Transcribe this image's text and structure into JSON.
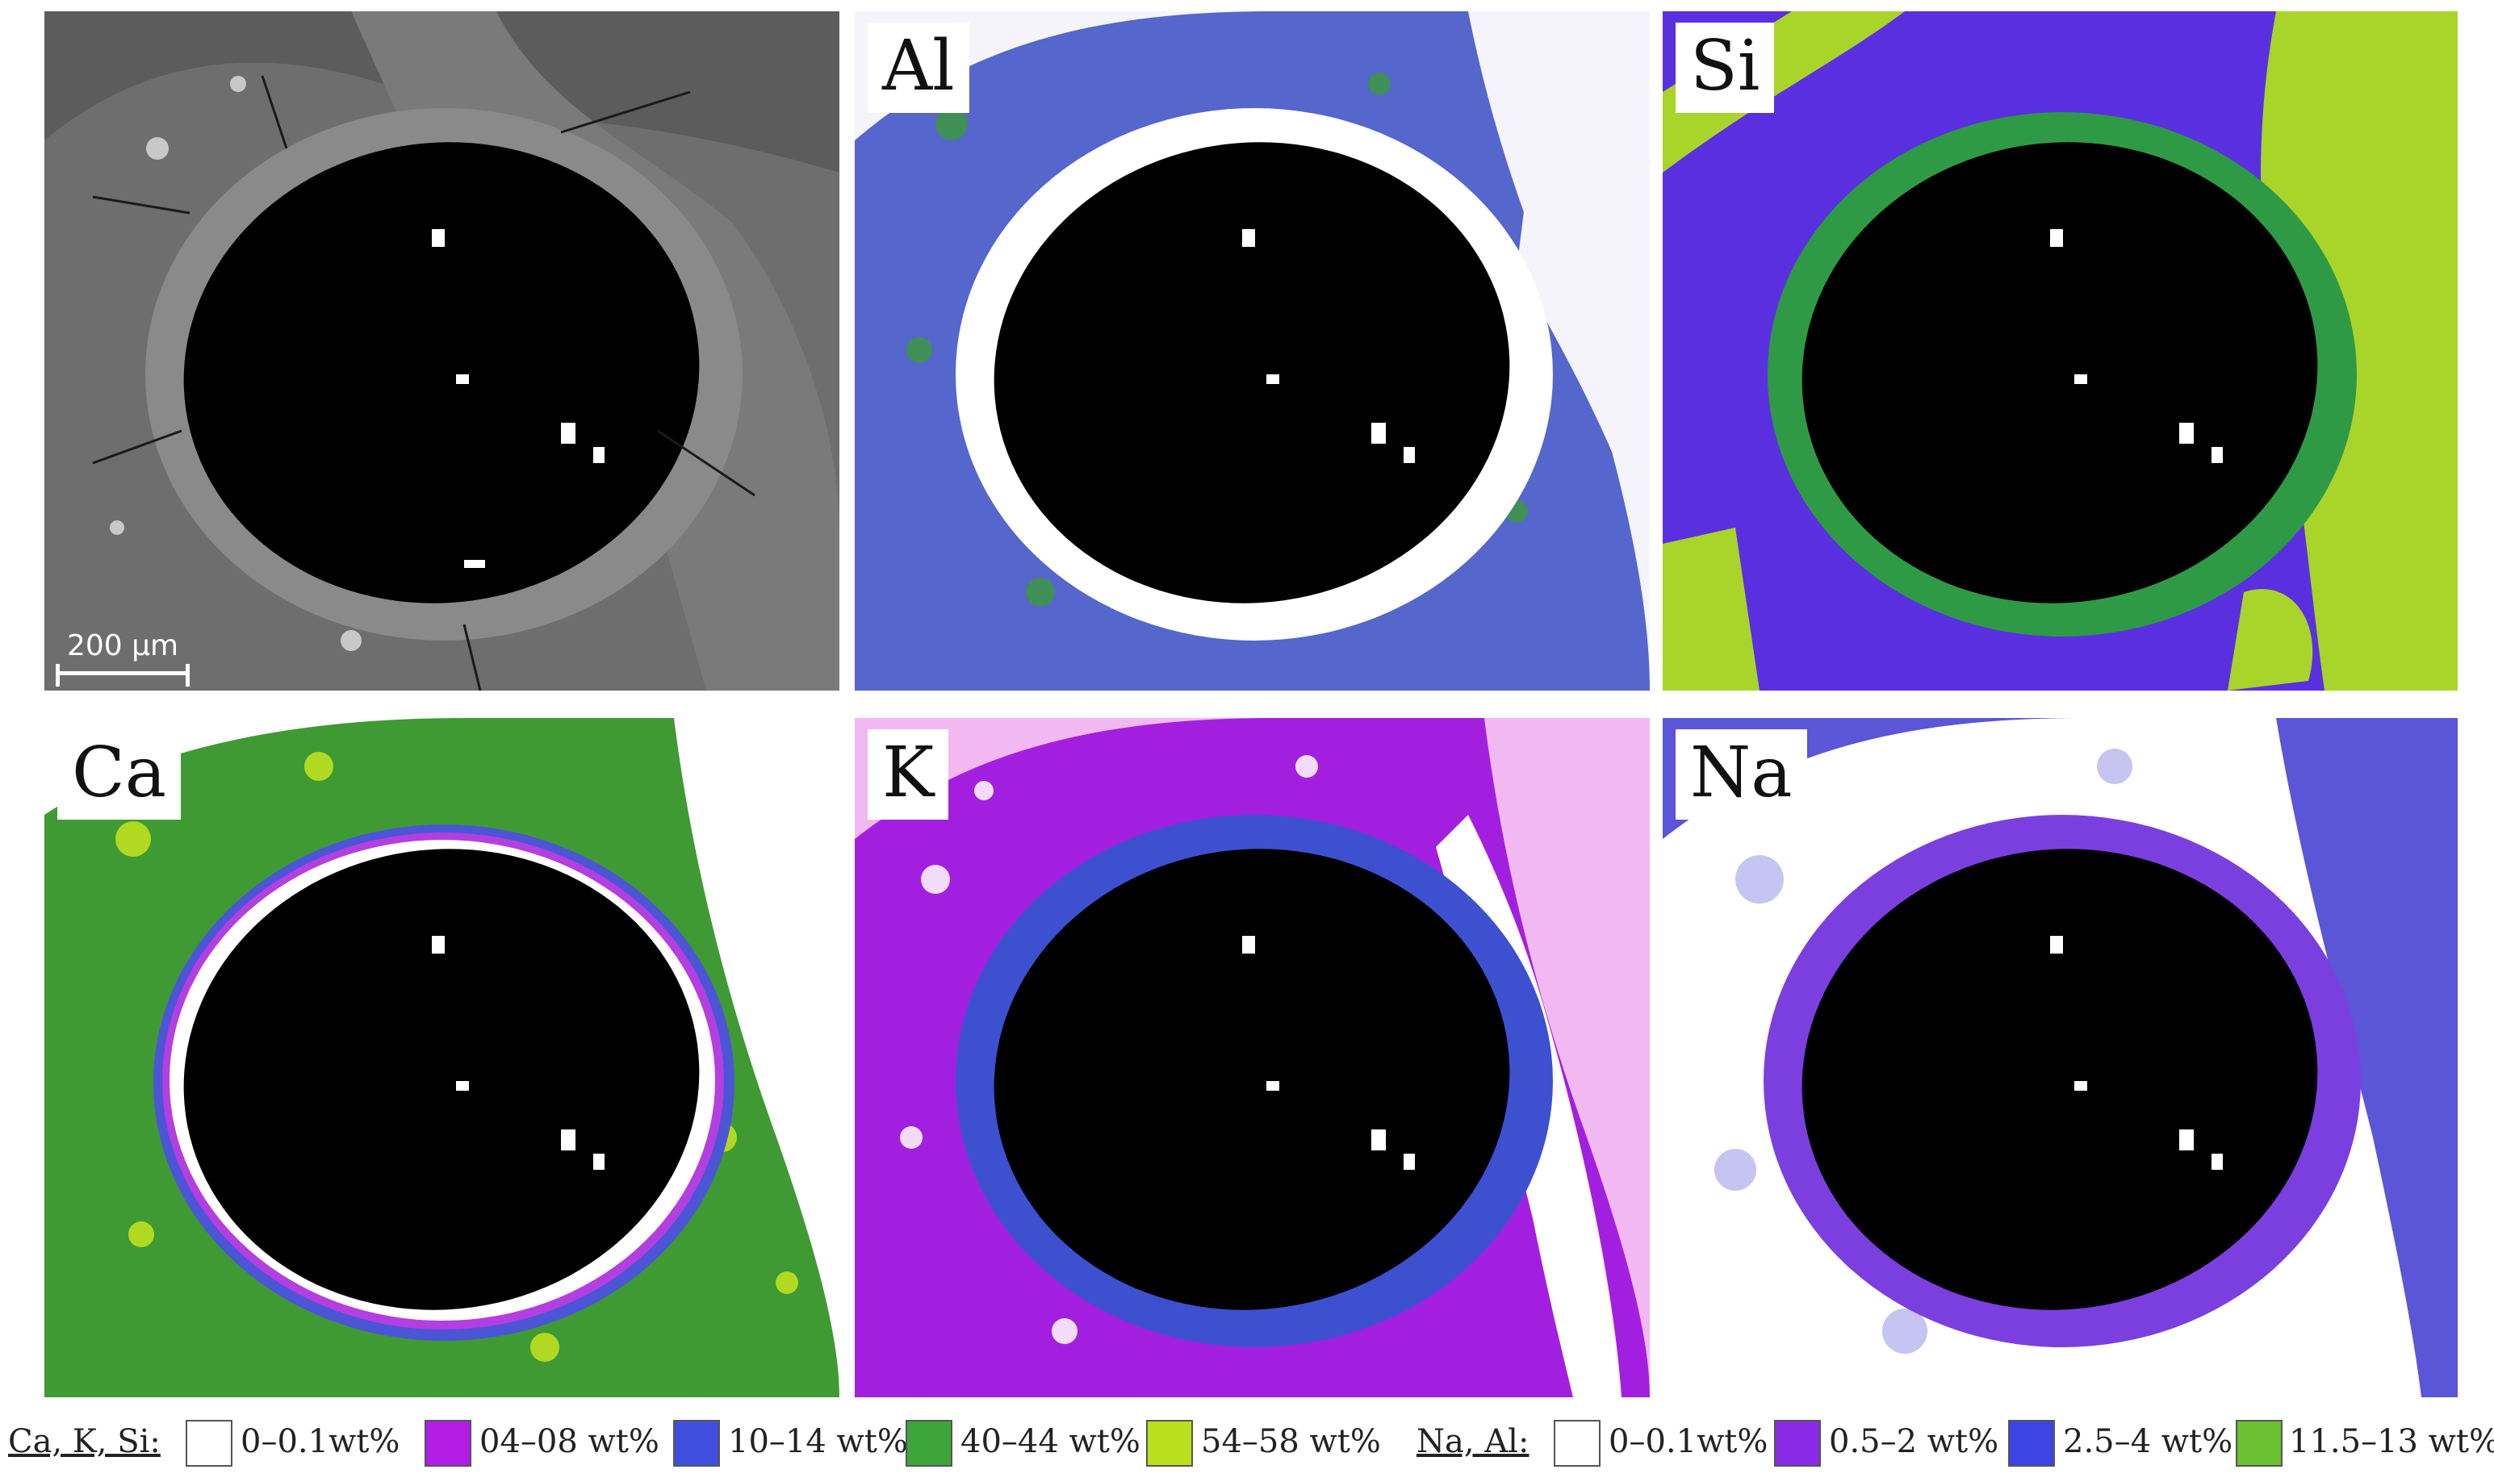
{
  "panels": {
    "sem": {
      "scale_bar_label": "200 µm"
    },
    "al": {
      "label": "Al",
      "colors": {
        "matrix": "#5566cc",
        "rim": "#ffffff",
        "clast": "#3a9a3a",
        "bg": "#f6f4fb"
      }
    },
    "si": {
      "label": "Si",
      "colors": {
        "matrix": "#5a2fe0",
        "rim": "#2f9a45",
        "clast": "#a9d42a",
        "bg": "#5a2fe0"
      }
    },
    "ca": {
      "label": "Ca",
      "colors": {
        "matrix": "#3f9a34",
        "rim1": "#ffffff",
        "rim2": "#b33fe0",
        "rim3": "#4b55d6",
        "clast": "#bfe01f",
        "bg": "#ffffff"
      }
    },
    "k": {
      "label": "K",
      "colors": {
        "matrix": "#a31fe0",
        "rim": "#3d50d0",
        "clast": "#ffffff",
        "bg": "#f2b8f2"
      }
    },
    "na": {
      "label": "Na",
      "colors": {
        "matrix": "#ffffff",
        "rim": "#7b3fe0",
        "clast": "#ffffff",
        "bg": "#5b55d8"
      }
    }
  },
  "legend": {
    "group1": {
      "title": "Ca, K, Si:",
      "items": [
        {
          "label": "0–0.1wt%",
          "color": "#ffffff"
        },
        {
          "label": "04–08 wt%",
          "color": "#b21ee6"
        },
        {
          "label": "10–14 wt%",
          "color": "#3f4fe0"
        },
        {
          "label": "40–44 wt%",
          "color": "#3ea53a"
        },
        {
          "label": "54–58 wt%",
          "color": "#b9e01c"
        }
      ]
    },
    "group2": {
      "title": "Na, Al:",
      "items": [
        {
          "label": "0–0.1wt%",
          "color": "#ffffff"
        },
        {
          "label": "0.5–2 wt%",
          "color": "#8a2ae6"
        },
        {
          "label": "2.5–4 wt%",
          "color": "#3d44e6"
        },
        {
          "label": "11.5–13 wt%",
          "color": "#6cc132"
        }
      ]
    }
  }
}
